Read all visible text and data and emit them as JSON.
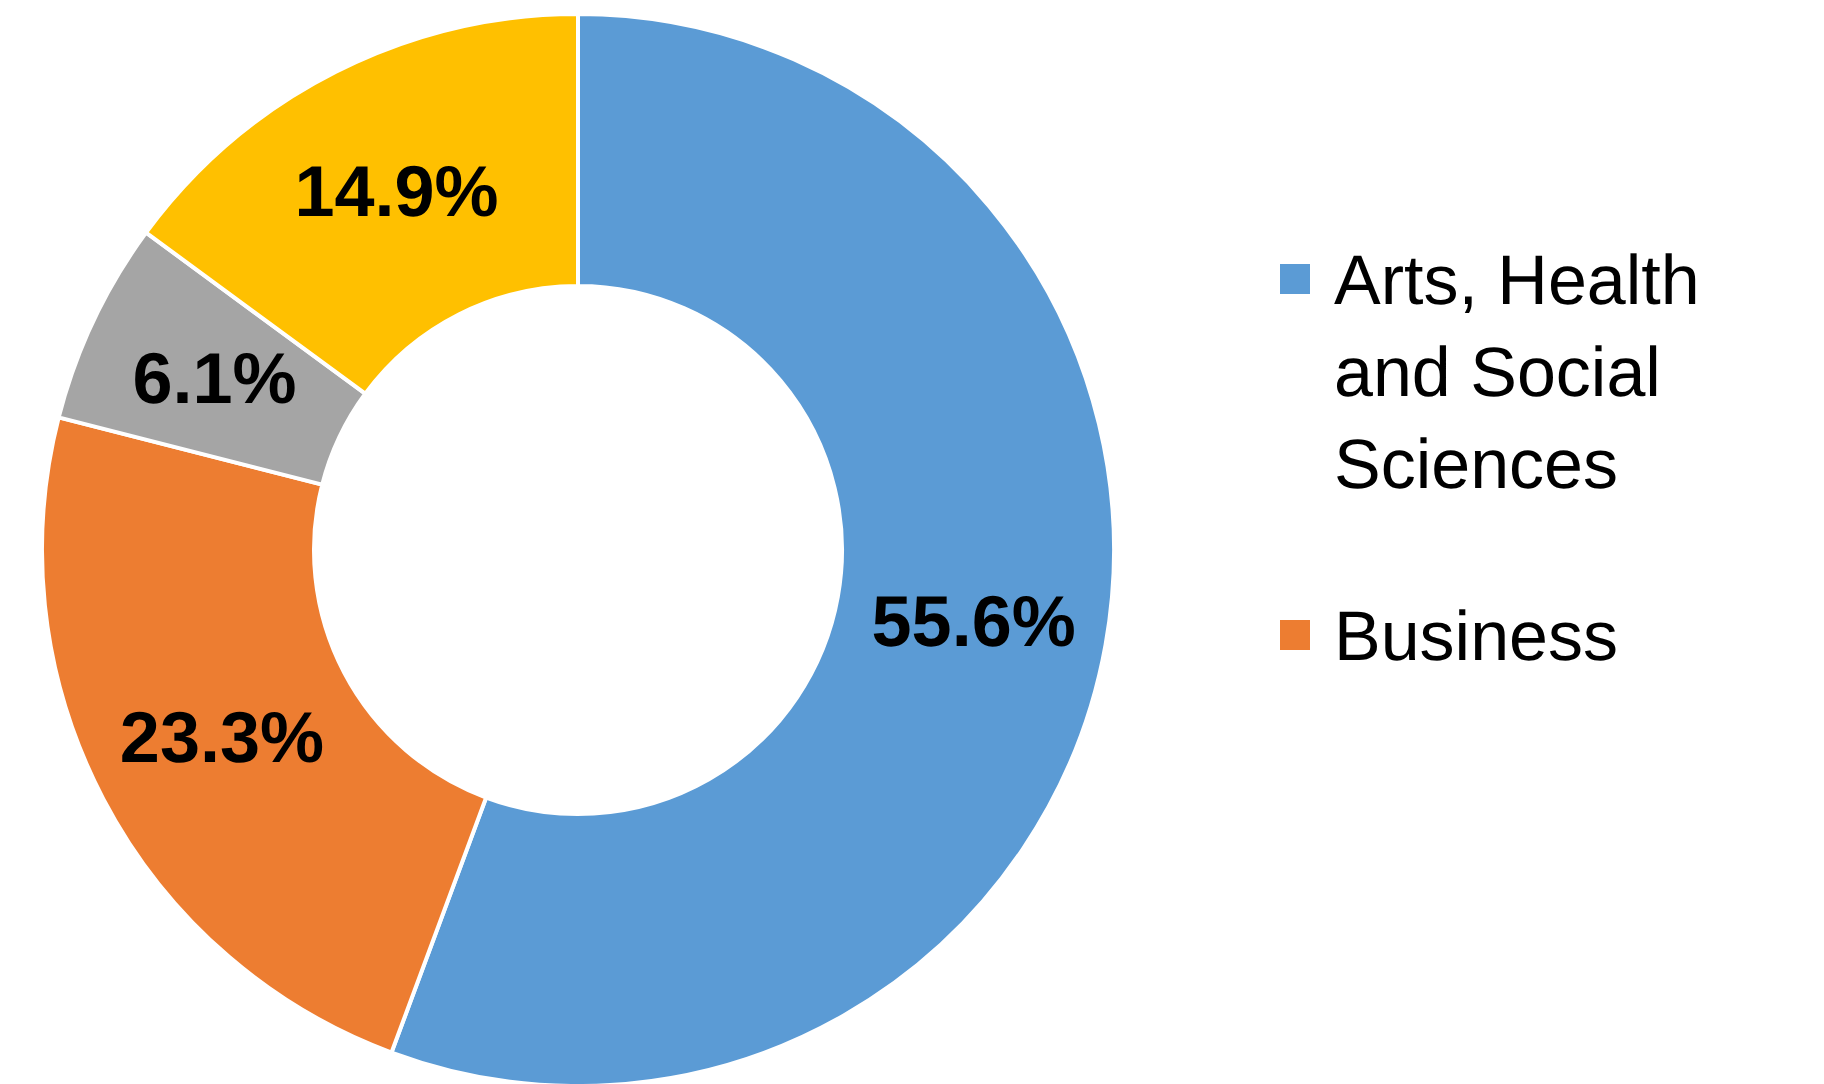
{
  "chart_data": {
    "type": "donut",
    "categories": [
      "Arts, Health and Social Sciences",
      "Business",
      null,
      null
    ],
    "values": [
      55.6,
      23.3,
      6.1,
      14.9
    ],
    "colors": [
      "#5b9bd5",
      "#ed7d31",
      "#a5a5a5",
      "#ffc000"
    ],
    "value_labels": [
      "55.6%",
      "23.3%",
      "6.1%",
      "14.9%"
    ],
    "legend": "right"
  }
}
